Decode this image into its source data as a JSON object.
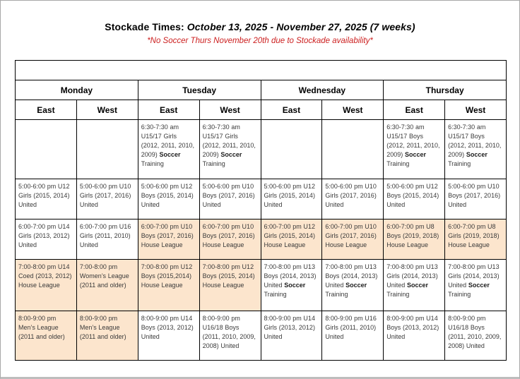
{
  "header": {
    "title_prefix": "Stockade Times: ",
    "title_range": "October 13, 2025 - November 27, 2025 (7 weeks)",
    "note": "*No Soccer Thurs November 20th due to Stockade availability*"
  },
  "colors": {
    "note_red": "#cc1f1f",
    "highlight_peach": "#fce5cd",
    "table_border": "#000000"
  },
  "table": {
    "day_headers": [
      "Monday",
      "Tuesday",
      "Wednesday",
      "Thursday"
    ],
    "sub_headers": [
      "East",
      "West"
    ],
    "rows": [
      {
        "slot": "6:30-7:30 am",
        "cells": [
          {
            "hl": false,
            "seg": []
          },
          {
            "hl": false,
            "seg": []
          },
          {
            "hl": false,
            "seg": [
              {
                "t": "6:30-7:30 am U15/17 Girls (2012, 2011, 2010, 2009) ",
                "b": false
              },
              {
                "t": "Soccer",
                "b": true
              },
              {
                "t": " Training",
                "b": false
              }
            ]
          },
          {
            "hl": false,
            "seg": [
              {
                "t": "6:30-7:30 am U15/17 Girls (2012, 2011, 2010, 2009) ",
                "b": false
              },
              {
                "t": "Soccer",
                "b": true
              },
              {
                "t": " Training",
                "b": false
              }
            ]
          },
          {
            "hl": false,
            "seg": []
          },
          {
            "hl": false,
            "seg": []
          },
          {
            "hl": false,
            "seg": [
              {
                "t": "6:30-7:30 am U15/17 Boys (2012, 2011, 2010, 2009) ",
                "b": false
              },
              {
                "t": "Soccer",
                "b": true
              },
              {
                "t": " Training",
                "b": false
              }
            ]
          },
          {
            "hl": false,
            "seg": [
              {
                "t": "6:30-7:30 am U15/17 Boys (2012, 2011, 2010, 2009) ",
                "b": false
              },
              {
                "t": "Soccer",
                "b": true
              },
              {
                "t": " Training",
                "b": false
              }
            ]
          }
        ]
      },
      {
        "slot": "5:00-6:00 pm",
        "cells": [
          {
            "hl": false,
            "seg": [
              {
                "t": "5:00-6:00 pm U12 Girls (2015, 2014) United",
                "b": false
              }
            ]
          },
          {
            "hl": false,
            "seg": [
              {
                "t": "5:00-6:00 pm U10 Girls (2017, 2016) United",
                "b": false
              }
            ]
          },
          {
            "hl": false,
            "seg": [
              {
                "t": "5:00-6:00 pm U12 Boys (2015, 2014) United",
                "b": false
              }
            ]
          },
          {
            "hl": false,
            "seg": [
              {
                "t": "5:00-6:00 pm U10 Boys (2017, 2016) United",
                "b": false
              }
            ]
          },
          {
            "hl": false,
            "seg": [
              {
                "t": "5:00-6:00 pm U12 Girls (2015, 2014) United",
                "b": false
              }
            ]
          },
          {
            "hl": false,
            "seg": [
              {
                "t": "5:00-6:00 pm U10 Girls (2017, 2016) United",
                "b": false
              }
            ]
          },
          {
            "hl": false,
            "seg": [
              {
                "t": "5:00-6:00 pm U12 Boys (2015, 2014) United",
                "b": false
              }
            ]
          },
          {
            "hl": false,
            "seg": [
              {
                "t": "5:00-6:00 pm U10 Boys (2017, 2016) United",
                "b": false
              }
            ]
          }
        ]
      },
      {
        "slot": "6:00-7:00 pm",
        "cells": [
          {
            "hl": false,
            "seg": [
              {
                "t": "6:00-7:00 pm U14 Girls (2013, 2012) United",
                "b": false
              }
            ]
          },
          {
            "hl": false,
            "seg": [
              {
                "t": "6:00-7:00 pm U16 Girls (2011, 2010) United",
                "b": false
              }
            ]
          },
          {
            "hl": true,
            "seg": [
              {
                "t": "6:00-7:00 pm U10 Boys (2017, 2016) House League",
                "b": false
              }
            ]
          },
          {
            "hl": true,
            "seg": [
              {
                "t": "6:00-7:00 pm U10 Boys (2017, 2016) House League",
                "b": false
              }
            ]
          },
          {
            "hl": true,
            "seg": [
              {
                "t": "6:00-7:00 pm U12 Girls (2015, 2014) House League",
                "b": false
              }
            ]
          },
          {
            "hl": true,
            "seg": [
              {
                "t": "6:00-7:00 pm U10 Girls (2017, 2016) House League",
                "b": false
              }
            ]
          },
          {
            "hl": true,
            "seg": [
              {
                "t": "6:00-7:00 pm U8 Boys (2019, 2018) House League",
                "b": false
              }
            ]
          },
          {
            "hl": true,
            "seg": [
              {
                "t": "6:00-7:00 pm U8 Girls (2019, 2018) House League",
                "b": false
              }
            ]
          }
        ]
      },
      {
        "slot": "7:00-8:00 pm",
        "cells": [
          {
            "hl": true,
            "seg": [
              {
                "t": "7:00-8:00 pm U14 Coed (2013, 2012) House League",
                "b": false
              }
            ]
          },
          {
            "hl": true,
            "seg": [
              {
                "t": "7:00-8:00 pm Women’s League (2011 and older)",
                "b": false
              }
            ]
          },
          {
            "hl": true,
            "seg": [
              {
                "t": "7:00-8:00 pm U12 Boys (2015,2014) House League",
                "b": false
              }
            ]
          },
          {
            "hl": true,
            "seg": [
              {
                "t": "7:00-8:00 pm U12 Boys (2015, 2014) House League",
                "b": false
              }
            ]
          },
          {
            "hl": false,
            "seg": [
              {
                "t": "7:00-8:00 pm U13 Boys (2014, 2013) United ",
                "b": false
              },
              {
                "t": "Soccer",
                "b": true
              },
              {
                "t": " Training",
                "b": false
              }
            ]
          },
          {
            "hl": false,
            "seg": [
              {
                "t": "7:00-8:00 pm U13 Boys (2014, 2013) United ",
                "b": false
              },
              {
                "t": "Soccer",
                "b": true
              },
              {
                "t": " Training",
                "b": false
              }
            ]
          },
          {
            "hl": false,
            "seg": [
              {
                "t": "7:00-8:00 pm U13 Girls (2014, 2013) United ",
                "b": false
              },
              {
                "t": "Soccer",
                "b": true
              },
              {
                "t": " Training",
                "b": false
              }
            ]
          },
          {
            "hl": false,
            "seg": [
              {
                "t": "7:00-8:00 pm U13 Girls (2014, 2013) United ",
                "b": false
              },
              {
                "t": "Soccer",
                "b": true
              },
              {
                "t": " Training",
                "b": false
              }
            ]
          }
        ]
      },
      {
        "slot": "8:00-9:00 pm",
        "cells": [
          {
            "hl": true,
            "seg": [
              {
                "t": "8:00-9:00 pm Men’s League (2011 and older)",
                "b": false
              }
            ]
          },
          {
            "hl": true,
            "seg": [
              {
                "t": "8:00-9:00 pm Men’s League (2011 and older)",
                "b": false
              }
            ]
          },
          {
            "hl": false,
            "seg": [
              {
                "t": "8:00-9:00 pm U14 Boys (2013, 2012) United",
                "b": false
              }
            ]
          },
          {
            "hl": false,
            "seg": [
              {
                "t": "8:00-9:00 pm U16/18 Boys (2011, 2010, 2009, 2008) United",
                "b": false
              }
            ]
          },
          {
            "hl": false,
            "seg": [
              {
                "t": "8:00-9:00 pm U14 Girls (2013, 2012) United",
                "b": false
              }
            ]
          },
          {
            "hl": false,
            "seg": [
              {
                "t": "8:00-9:00 pm U16 Girls (2011, 2010) United",
                "b": false
              }
            ]
          },
          {
            "hl": false,
            "seg": [
              {
                "t": "8:00-9:00 pm U14 Boys (2013, 2012) United",
                "b": false
              }
            ]
          },
          {
            "hl": false,
            "seg": [
              {
                "t": "8:00-9:00 pm U16/18 Boys (2011, 2010, 2009, 2008) United",
                "b": false
              }
            ]
          }
        ]
      }
    ]
  }
}
